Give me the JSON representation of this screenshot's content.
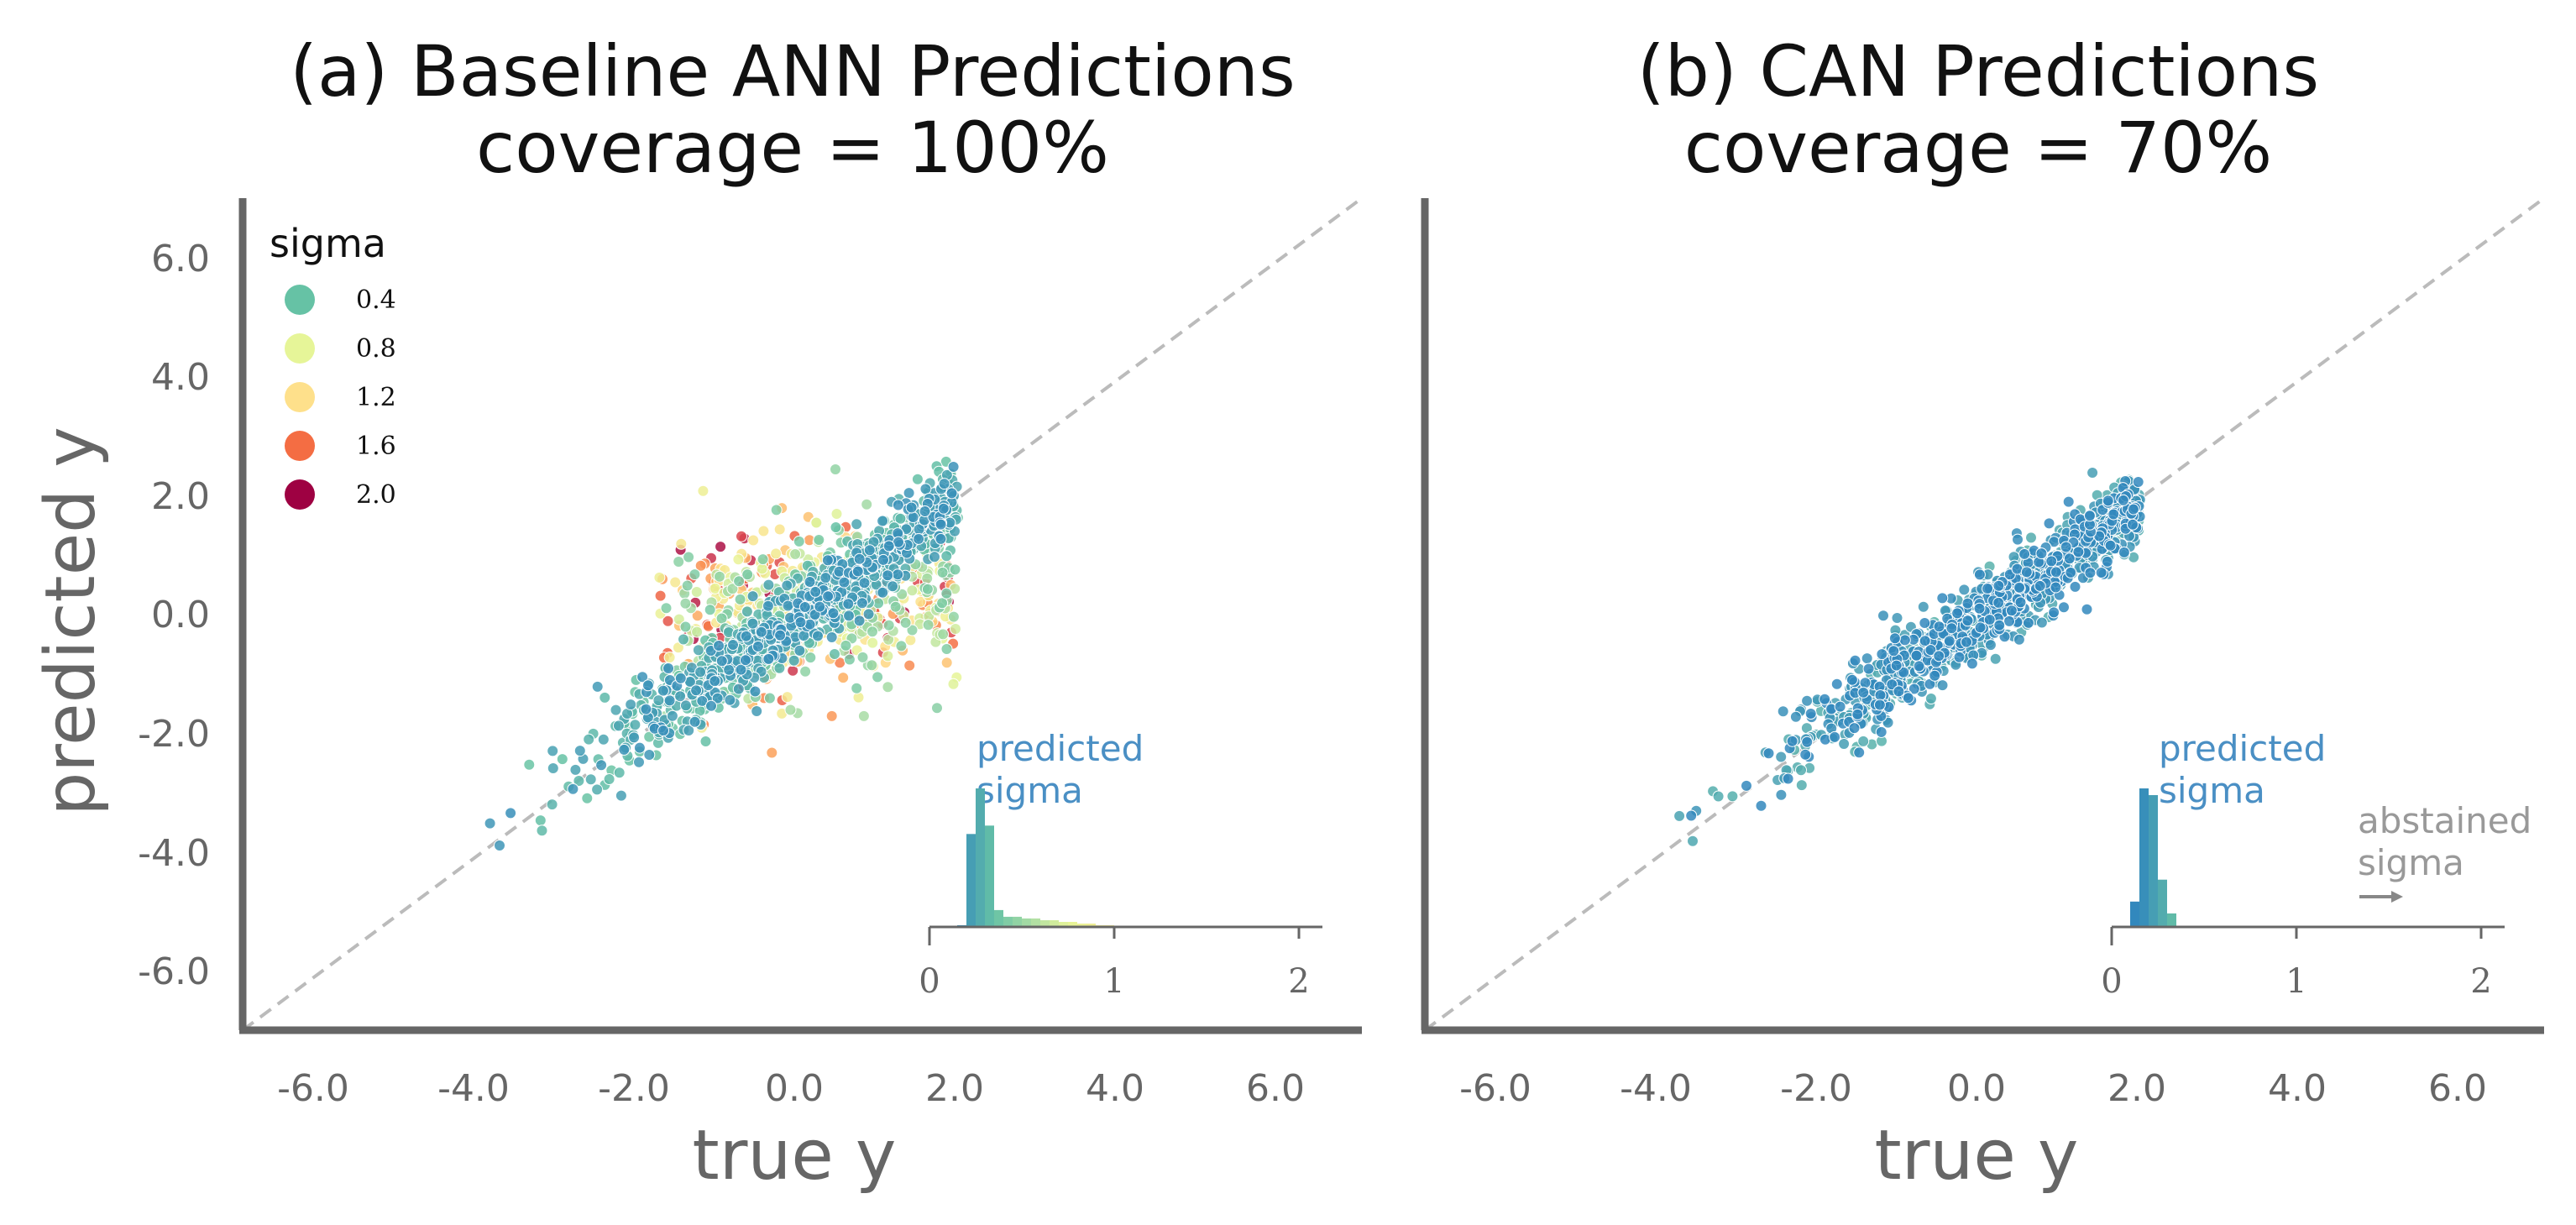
{
  "chart_data": [
    {
      "type": "scatter",
      "title": "(a) Baseline ANN Predictions",
      "subtitle": "coverage = 100%",
      "xlabel": "true y",
      "ylabel": "predicted y",
      "xlim": [
        -7.0,
        7.0
      ],
      "ylim": [
        -7.0,
        7.0
      ],
      "xticks": [
        "-6.0",
        "-4.0",
        "-2.0",
        "0.0",
        "2.0",
        "4.0",
        "6.0"
      ],
      "yticks": [
        "-6.0",
        "-4.0",
        "-2.0",
        "0.0",
        "2.0",
        "4.0",
        "6.0"
      ],
      "reference_line": "y = x (dashed, grey)",
      "point_count": 1600,
      "color_by": "sigma",
      "legend": {
        "title": "sigma",
        "placement": "top-left",
        "items": [
          {
            "label": "0.4",
            "color": "#66c2a5"
          },
          {
            "label": "0.8",
            "color": "#e6f598"
          },
          {
            "label": "1.2",
            "color": "#fee08b"
          },
          {
            "label": "1.6",
            "color": "#f46d43"
          },
          {
            "label": "2.0",
            "color": "#9e0142"
          }
        ]
      },
      "inset": {
        "type": "histogram",
        "label": "predicted\nsigma",
        "label_lines": [
          "predicted",
          "sigma"
        ],
        "xticks": [
          "0",
          "1",
          "2"
        ],
        "xlim": [
          0,
          2.1
        ],
        "bin_width": 0.05,
        "bin_starts": [
          0.15,
          0.2,
          0.25,
          0.3,
          0.35,
          0.4,
          0.45,
          0.5,
          0.55,
          0.6,
          0.65,
          0.7,
          0.75,
          0.8,
          0.85,
          0.9,
          0.95
        ],
        "counts": [
          1,
          55,
          82,
          60,
          10,
          6,
          6,
          5,
          5,
          4,
          4,
          3,
          3,
          2,
          2,
          1,
          1
        ]
      }
    },
    {
      "type": "scatter",
      "title": "(b) CAN Predictions",
      "subtitle": "coverage = 70%",
      "xlabel": "true y",
      "ylabel": "",
      "xlim": [
        -7.0,
        7.0
      ],
      "ylim": [
        -7.0,
        7.0
      ],
      "xticks": [
        "-6.0",
        "-4.0",
        "-2.0",
        "0.0",
        "2.0",
        "4.0",
        "6.0"
      ],
      "reference_line": "y = x (dashed, grey)",
      "point_count": 1120,
      "color_by": "sigma",
      "inset": {
        "type": "histogram",
        "label": "predicted\nsigma",
        "label_lines": [
          "predicted",
          "sigma"
        ],
        "annotation": "abstained\nsigma",
        "annotation_lines": [
          "abstained",
          "sigma"
        ],
        "annotation_arrow": "right",
        "xticks": [
          "0",
          "1",
          "2"
        ],
        "xlim": [
          0,
          2.1
        ],
        "bin_width": 0.05,
        "bin_starts": [
          0.1,
          0.15,
          0.2,
          0.25,
          0.3
        ],
        "counts": [
          15,
          82,
          78,
          28,
          8
        ]
      }
    }
  ],
  "colors": {
    "axis": "#666666",
    "reference": "#bbbbbb",
    "inset_label": "#4a8fc4",
    "annotation": "#999999",
    "low_sigma_blue": "#3d8dbf",
    "teal": "#66c2a5"
  }
}
